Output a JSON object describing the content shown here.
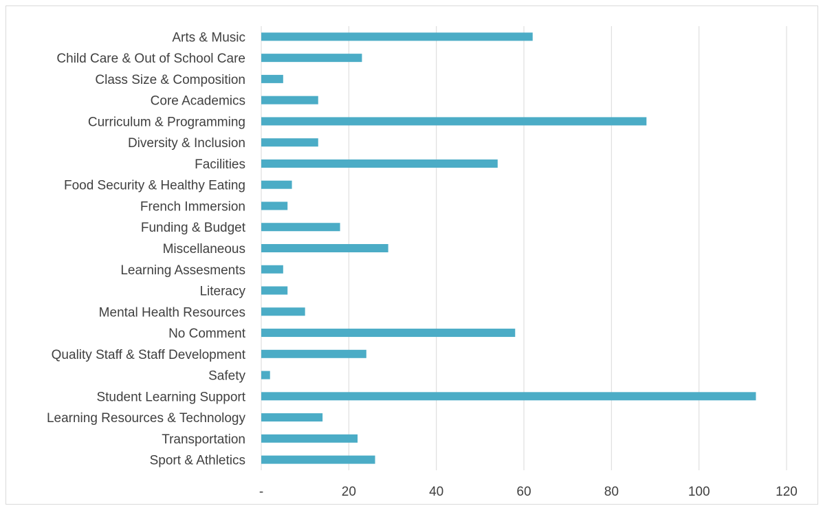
{
  "chart_data": {
    "type": "bar",
    "orientation": "horizontal",
    "categories": [
      "Arts & Music",
      "Child Care & Out of School Care",
      "Class Size & Composition",
      "Core Academics",
      "Curriculum & Programming",
      "Diversity & Inclusion",
      "Facilities",
      "Food Security & Healthy Eating",
      "French Immersion",
      "Funding & Budget",
      "Miscellaneous",
      "Learning Assesments",
      "Literacy",
      "Mental Health Resources",
      "No Comment",
      "Quality Staff & Staff Development",
      "Safety",
      "Student Learning Support",
      "Learning Resources & Technology",
      "Transportation",
      "Sport & Athletics"
    ],
    "values": [
      62,
      23,
      5,
      13,
      88,
      13,
      54,
      7,
      6,
      18,
      29,
      5,
      6,
      10,
      58,
      24,
      2,
      113,
      14,
      22,
      26
    ],
    "xlim": [
      0,
      120
    ],
    "x_ticks": [
      {
        "value": 0,
        "label": "-"
      },
      {
        "value": 20,
        "label": "20"
      },
      {
        "value": 40,
        "label": "40"
      },
      {
        "value": 60,
        "label": "60"
      },
      {
        "value": 80,
        "label": "80"
      },
      {
        "value": 100,
        "label": "100"
      },
      {
        "value": 120,
        "label": "120"
      }
    ],
    "title": "",
    "xlabel": "",
    "ylabel": "",
    "grid": "vertical",
    "legend": "none",
    "bar_color": "#4BACC6",
    "grid_color": "#d9d9d9"
  }
}
